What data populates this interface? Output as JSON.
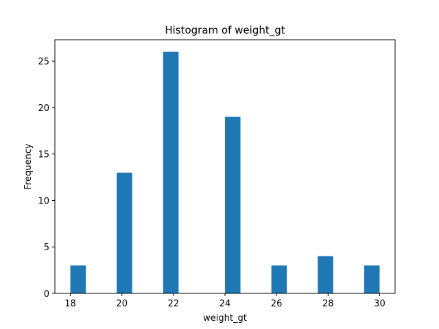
{
  "chart_data": {
    "type": "bar",
    "title": "Histogram of weight_gt",
    "xlabel": "weight_gt",
    "ylabel": "Frequency",
    "bin_width": 0.6,
    "bars": [
      {
        "x_start": 18.0,
        "value": 3
      },
      {
        "x_start": 19.8,
        "value": 13
      },
      {
        "x_start": 21.6,
        "value": 26
      },
      {
        "x_start": 24.0,
        "value": 19
      },
      {
        "x_start": 25.8,
        "value": 3
      },
      {
        "x_start": 27.6,
        "value": 4
      },
      {
        "x_start": 29.4,
        "value": 3
      }
    ],
    "xlim": [
      17.4,
      30.6
    ],
    "ylim": [
      0,
      27.3
    ],
    "xticks": [
      18,
      20,
      22,
      24,
      26,
      28,
      30
    ],
    "yticks": [
      0,
      5,
      10,
      15,
      20,
      25
    ],
    "bar_color": "#1f77b4",
    "grid": false,
    "legend": "none"
  }
}
